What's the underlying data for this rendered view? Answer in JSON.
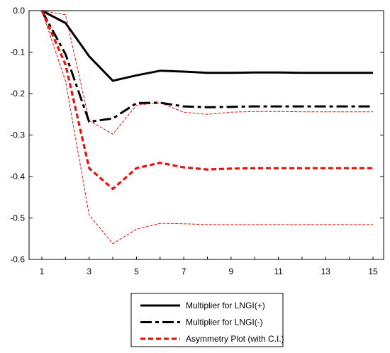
{
  "chart_data": {
    "type": "line",
    "x": [
      1,
      2,
      3,
      4,
      5,
      6,
      7,
      8,
      9,
      10,
      11,
      12,
      13,
      14,
      15
    ],
    "xticks": [
      "1",
      "3",
      "5",
      "7",
      "9",
      "11",
      "13",
      "15"
    ],
    "yticks": [
      "0.0",
      "-0.1",
      "-0.2",
      "-0.3",
      "-0.4",
      "-0.5",
      "-0.6"
    ],
    "ylim": [
      -0.6,
      0.0
    ],
    "xlim": [
      1,
      15
    ],
    "grid": false,
    "legend_position": "bottom-center",
    "series": [
      {
        "name": "Multiplier for LNGI(+)",
        "style": "solid",
        "color": "#000000",
        "values": [
          0.0,
          -0.03,
          -0.11,
          -0.169,
          -0.156,
          -0.145,
          -0.147,
          -0.15,
          -0.15,
          -0.149,
          -0.149,
          -0.15,
          -0.15,
          -0.15,
          -0.15
        ]
      },
      {
        "name": "Multiplier for LNGI(-)",
        "style": "dash-dot",
        "color": "#000000",
        "values": [
          0.0,
          -0.105,
          -0.268,
          -0.26,
          -0.223,
          -0.222,
          -0.231,
          -0.233,
          -0.232,
          -0.231,
          -0.231,
          -0.231,
          -0.231,
          -0.231,
          -0.231
        ]
      },
      {
        "name": "Asymmetry Plot (with C.I.)",
        "style": "dashed",
        "color": "#e8120f",
        "values": [
          0.0,
          -0.13,
          -0.38,
          -0.43,
          -0.38,
          -0.367,
          -0.378,
          -0.383,
          -0.381,
          -0.38,
          -0.38,
          -0.38,
          -0.38,
          -0.38,
          -0.38
        ],
        "ci_upper": [
          0.0,
          -0.01,
          -0.265,
          -0.298,
          -0.228,
          -0.222,
          -0.245,
          -0.25,
          -0.245,
          -0.243,
          -0.243,
          -0.244,
          -0.244,
          -0.244,
          -0.244
        ],
        "ci_lower": [
          0.0,
          -0.17,
          -0.493,
          -0.562,
          -0.527,
          -0.513,
          -0.514,
          -0.516,
          -0.516,
          -0.516,
          -0.516,
          -0.516,
          -0.516,
          -0.516,
          -0.516
        ]
      }
    ]
  }
}
